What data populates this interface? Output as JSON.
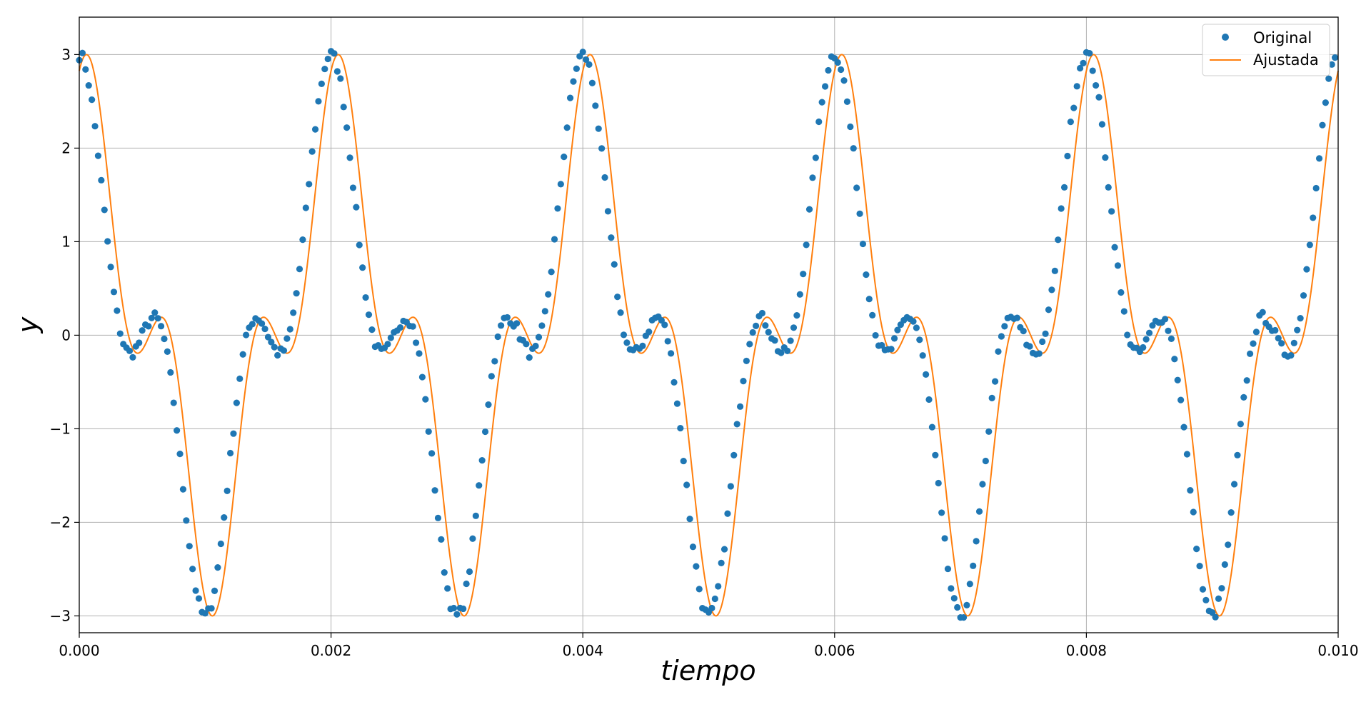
{
  "chart_data": {
    "type": "scatter",
    "xlabel": "tiempo",
    "ylabel": "y",
    "xlim": [
      0,
      0.01
    ],
    "ylim": [
      -3.18,
      3.4
    ],
    "grid": true,
    "legend_position": "top-right",
    "x_ticks": [
      0,
      0.002,
      0.004,
      0.006,
      0.008,
      0.01
    ],
    "x_tick_labels": [
      "0.000",
      "0.002",
      "0.004",
      "0.006",
      "0.008",
      "0.010"
    ],
    "y_ticks": [
      -3,
      -2,
      -1,
      0,
      1,
      2,
      3
    ],
    "y_tick_labels": [
      "−3",
      "−2",
      "−1",
      "0",
      "1",
      "2",
      "3"
    ],
    "colors": {
      "original": "#1f77b4",
      "fit": "#ff7f0e",
      "grid": "#b0b0b0"
    },
    "series": [
      {
        "name": "Original",
        "style": "points",
        "sample_count": 400,
        "sample_interval": 2.5e-05,
        "x_start": 0,
        "model": "2*cos(2*pi*500*t) + 1*cos(2*pi*1500*t)",
        "noise_amplitude": 0.06
      },
      {
        "name": "Ajustada",
        "style": "line",
        "x_range": [
          0,
          0.01
        ],
        "model": "2*cos(2*pi*500*t - 0.18) + 1*cos(2*pi*1500*t - 0.54)"
      }
    ]
  }
}
